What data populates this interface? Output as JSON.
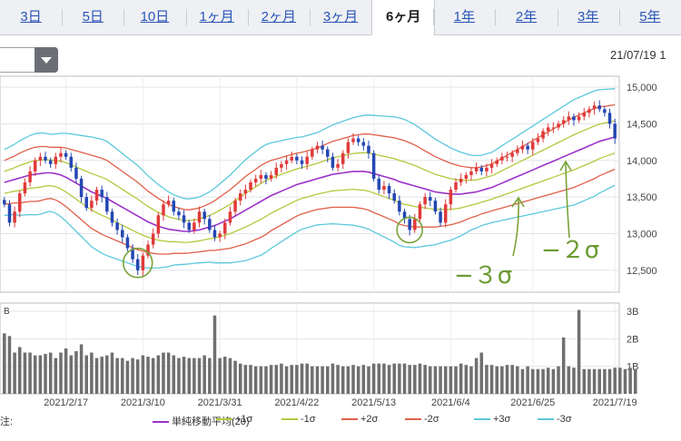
{
  "tabs": [
    "3日",
    "5日",
    "10日",
    "1ヶ月",
    "2ヶ月",
    "3ヶ月",
    "6ヶ月",
    "1年",
    "2年",
    "3年",
    "5年"
  ],
  "active_tab": "6ヶ月",
  "date_stamp": "21/07/19 1",
  "legend_prefix": "注:",
  "legend": [
    {
      "label": "単純移動平均(20)",
      "color": "#9b32c8"
    },
    {
      "label": "+1σ",
      "color": "#b4c83c"
    },
    {
      "label": "-1σ",
      "color": "#b4c83c"
    },
    {
      "label": "+2σ",
      "color": "#e0604a"
    },
    {
      "label": "-2σ",
      "color": "#e0604a"
    },
    {
      "label": "+3σ",
      "color": "#5bc8dc"
    },
    {
      "label": "-3σ",
      "color": "#5bc8dc"
    }
  ],
  "annotations": {
    "minus3": "−３σ",
    "minus2": "−２σ"
  },
  "chart_data": {
    "type": "candlestick",
    "x_ticks": [
      "2021/2/17",
      "2021/3/10",
      "2021/3/31",
      "2021/4/22",
      "2021/5/13",
      "2021/6/4",
      "2021/6/25",
      "2021/7/19"
    ],
    "price_axis": {
      "ticks": [
        "12,500",
        "13,000",
        "13,500",
        "14,000",
        "14,500",
        "15,000"
      ],
      "ylim": [
        12200,
        15150
      ]
    },
    "volume_axis": {
      "ticks": [
        "1B",
        "2B",
        "3B"
      ],
      "ylim": [
        0,
        3.3
      ],
      "label": "B"
    },
    "closes": [
      13400,
      13150,
      13300,
      13550,
      13700,
      13850,
      14000,
      14050,
      14000,
      13950,
      14050,
      14100,
      14050,
      13900,
      13750,
      13500,
      13350,
      13450,
      13600,
      13500,
      13300,
      13150,
      13050,
      12950,
      12800,
      12650,
      12500,
      12700,
      12850,
      13000,
      13250,
      13400,
      13450,
      13300,
      13250,
      13150,
      13050,
      13150,
      13300,
      13200,
      13050,
      12950,
      13000,
      13150,
      13300,
      13450,
      13550,
      13600,
      13700,
      13750,
      13800,
      13750,
      13800,
      13900,
      13950,
      14000,
      14050,
      14000,
      13950,
      14050,
      14150,
      14200,
      14150,
      14050,
      13900,
      13950,
      14100,
      14250,
      14300,
      14250,
      14200,
      14100,
      13750,
      13600,
      13650,
      13550,
      13450,
      13300,
      13200,
      13050,
      13200,
      13400,
      13500,
      13450,
      13300,
      13150,
      13400,
      13600,
      13700,
      13750,
      13800,
      13850,
      13900,
      13850,
      13900,
      13950,
      14000,
      14050,
      14050,
      14100,
      14150,
      14200,
      14150,
      14250,
      14300,
      14400,
      14450,
      14450,
      14500,
      14550,
      14600,
      14550,
      14600,
      14650,
      14700,
      14750,
      14700,
      14650,
      14500,
      14300
    ],
    "volumes": [
      2.2,
      2.1,
      1.5,
      1.7,
      1.5,
      1.5,
      1.4,
      1.4,
      1.45,
      1.5,
      1.3,
      1.5,
      1.65,
      1.4,
      1.55,
      1.8,
      1.4,
      1.5,
      1.3,
      1.35,
      1.4,
      1.5,
      1.3,
      1.3,
      1.2,
      1.3,
      1.25,
      1.4,
      1.35,
      1.3,
      1.4,
      1.5,
      1.5,
      1.4,
      1.3,
      1.35,
      1.3,
      1.3,
      1.3,
      1.4,
      1.3,
      2.85,
      1.3,
      1.35,
      1.3,
      1.2,
      1.1,
      1.05,
      1.05,
      1.0,
      1.0,
      1.0,
      1.05,
      1.05,
      1.1,
      1.0,
      1.05,
      1.05,
      1.1,
      1.1,
      1.0,
      1.0,
      1.0,
      1.0,
      1.1,
      1.05,
      1.0,
      1.0,
      1.05,
      1.0,
      1.05,
      1.0,
      1.1,
      1.1,
      1.1,
      1.05,
      1.1,
      1.1,
      1.1,
      1.05,
      1.05,
      1.1,
      1.05,
      1.0,
      1.0,
      1.0,
      1.0,
      1.0,
      1.0,
      1.1,
      1.05,
      1.0,
      1.3,
      1.5,
      1.05,
      1.05,
      1.0,
      1.0,
      1.05,
      1.05,
      1.0,
      0.9,
      1.0,
      0.9,
      0.9,
      0.9,
      0.95,
      0.9,
      1.0,
      2.05,
      1.0,
      0.95,
      3.05,
      0.9,
      0.9,
      0.9,
      0.9,
      0.9,
      0.9,
      0.95,
      0.95,
      0.9,
      0.95,
      0.9
    ],
    "ma20": [
      13700,
      13720,
      13740,
      13760,
      13780,
      13800,
      13810,
      13820,
      13830,
      13830,
      13820,
      13800,
      13770,
      13730,
      13690,
      13650,
      13610,
      13570,
      13540,
      13510,
      13480,
      13440,
      13400,
      13360,
      13320,
      13280,
      13240,
      13200,
      13160,
      13130,
      13100,
      13080,
      13060,
      13050,
      13040,
      13030,
      13030,
      13040,
      13050,
      13070,
      13090,
      13110,
      13140,
      13170,
      13200,
      13240,
      13280,
      13320,
      13360,
      13400,
      13440,
      13480,
      13520,
      13550,
      13580,
      13610,
      13640,
      13670,
      13690,
      13710,
      13730,
      13750,
      13770,
      13790,
      13810,
      13820,
      13830,
      13840,
      13850,
      13850,
      13850,
      13840,
      13820,
      13800,
      13780,
      13760,
      13740,
      13710,
      13690,
      13670,
      13650,
      13630,
      13610,
      13590,
      13570,
      13560,
      13550,
      13540,
      13540,
      13540,
      13550,
      13560,
      13570,
      13590,
      13610,
      13630,
      13660,
      13690,
      13720,
      13750,
      13780,
      13810,
      13840,
      13870,
      13900,
      13930,
      13960,
      13990,
      14020,
      14050,
      14080,
      14110,
      14140,
      14170,
      14200,
      14230,
      14260,
      14280,
      14300,
      14320
    ],
    "sigma": [
      150,
      155,
      160,
      170,
      175,
      180,
      185,
      185,
      180,
      175,
      180,
      190,
      200,
      210,
      220,
      230,
      240,
      250,
      255,
      260,
      260,
      255,
      250,
      245,
      240,
      235,
      230,
      220,
      210,
      200,
      190,
      180,
      170,
      160,
      155,
      150,
      148,
      148,
      150,
      155,
      160,
      170,
      180,
      190,
      200,
      210,
      220,
      230,
      235,
      240,
      245,
      245,
      240,
      235,
      230,
      225,
      220,
      215,
      210,
      210,
      210,
      210,
      215,
      220,
      225,
      230,
      235,
      240,
      245,
      250,
      255,
      260,
      265,
      270,
      275,
      280,
      285,
      290,
      290,
      285,
      280,
      270,
      260,
      250,
      240,
      230,
      220,
      210,
      200,
      190,
      180,
      170,
      165,
      160,
      160,
      160,
      165,
      170,
      175,
      180,
      185,
      190,
      195,
      200,
      205,
      210,
      215,
      220,
      225,
      230,
      235,
      240,
      240,
      240,
      240,
      240,
      235,
      230,
      225,
      220
    ]
  }
}
